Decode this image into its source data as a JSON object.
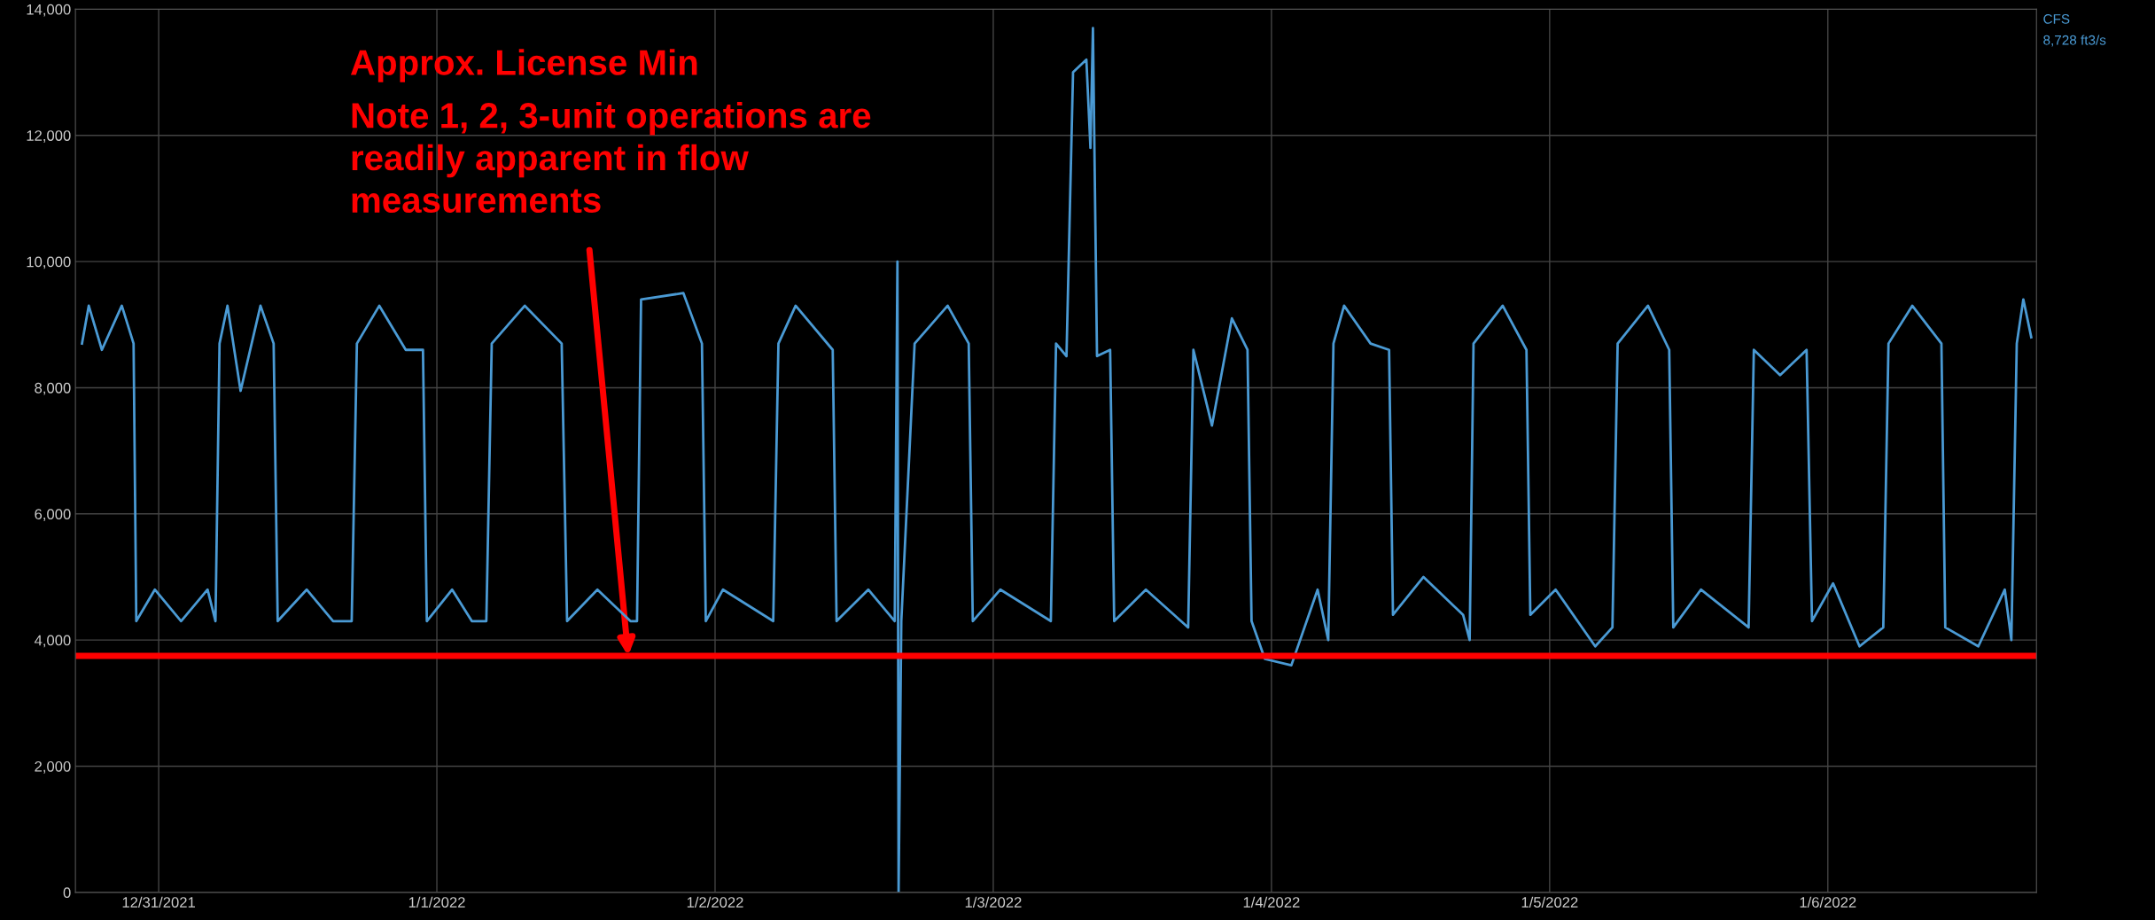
{
  "chart_data": {
    "type": "line",
    "series": [
      {
        "name": "CFS",
        "color": "#4a9ad4",
        "x": [
          "2021-12-30T17:23",
          "2021-12-30T17:58",
          "2021-12-30T19:06",
          "2021-12-30T20:49",
          "2021-12-30T21:50",
          "2021-12-30T22:04",
          "2021-12-30T23:40",
          "2021-12-31T01:56",
          "2021-12-31T04:13",
          "2021-12-31T04:54",
          "2021-12-31T05:15",
          "2021-12-31T05:56",
          "2021-12-31T07:04",
          "2021-12-31T08:47",
          "2021-12-31T09:55",
          "2021-12-31T10:16",
          "2021-12-31T12:46",
          "2021-12-31T15:03",
          "2021-12-31T16:39",
          "2021-12-31T17:06",
          "2021-12-31T19:02",
          "2021-12-31T21:19",
          "2021-12-31T22:48",
          "2021-12-31T23:08",
          "2022-01-01T01:19",
          "2022-01-01T03:01",
          "2022-01-01T04:16",
          "2022-01-01T04:44",
          "2022-01-01T07:35",
          "2022-01-01T10:46",
          "2022-01-01T11:14",
          "2022-01-01T13:51",
          "2022-01-01T16:42",
          "2022-01-01T17:16",
          "2022-01-01T17:37",
          "2022-01-01T21:16",
          "2022-01-01T22:52",
          "2022-01-01T23:12",
          "2022-01-02T00:41",
          "2022-01-02T05:01",
          "2022-01-02T05:28",
          "2022-01-02T06:57",
          "2022-01-02T10:09",
          "2022-01-02T10:29",
          "2022-01-02T13:13",
          "2022-01-02T15:30",
          "2022-01-02T15:44",
          "2022-01-02T15:50",
          "2022-01-02T16:04",
          "2022-01-02T17:13",
          "2022-01-02T20:04",
          "2022-01-02T21:53",
          "2022-01-02T22:14",
          "2022-01-03T00:37",
          "2022-01-03T04:58",
          "2022-01-03T05:25",
          "2022-01-03T06:19",
          "2022-01-03T06:53",
          "2022-01-03T08:02",
          "2022-01-03T08:23",
          "2022-01-03T08:36",
          "2022-01-03T08:57",
          "2022-01-03T10:05",
          "2022-01-03T10:26",
          "2022-01-03T13:10",
          "2022-01-03T16:49",
          "2022-01-03T17:16",
          "2022-01-03T18:52",
          "2022-01-03T20:35",
          "2022-01-03T21:56",
          "2022-01-03T22:17",
          "2022-01-03T23:26",
          "2022-01-04T01:43",
          "2022-01-04T03:59",
          "2022-01-04T04:54",
          "2022-01-04T05:21",
          "2022-01-04T06:16",
          "2022-01-04T08:33",
          "2022-01-04T10:09",
          "2022-01-04T10:29",
          "2022-01-04T13:07",
          "2022-01-04T16:32",
          "2022-01-04T17:06",
          "2022-01-04T17:26",
          "2022-01-04T19:57",
          "2022-01-04T22:00",
          "2022-01-04T22:20",
          "2022-01-05T00:31",
          "2022-01-05T03:56",
          "2022-01-05T05:25",
          "2022-01-05T05:52",
          "2022-01-05T08:29",
          "2022-01-05T10:19",
          "2022-01-05T10:40",
          "2022-01-05T13:03",
          "2022-01-05T17:10",
          "2022-01-05T17:37",
          "2022-01-05T19:53",
          "2022-01-05T22:10",
          "2022-01-05T22:38",
          "2022-01-06T00:27",
          "2022-01-06T02:44",
          "2022-01-06T04:47",
          "2022-01-06T05:14",
          "2022-01-06T07:17",
          "2022-01-06T09:48",
          "2022-01-06T10:08",
          "2022-01-06T12:59",
          "2022-01-06T15:16",
          "2022-01-06T15:50",
          "2022-01-06T16:18",
          "2022-01-06T16:52",
          "2022-01-06T17:33"
        ],
        "values": [
          8700,
          9300,
          8600,
          9300,
          8700,
          4300,
          4800,
          4300,
          4800,
          4300,
          8700,
          9300,
          7950,
          9300,
          8700,
          4300,
          4800,
          4300,
          4300,
          8700,
          9300,
          8600,
          8600,
          4300,
          4800,
          4300,
          4300,
          8700,
          9300,
          8700,
          4300,
          4800,
          4300,
          4300,
          9400,
          9500,
          8700,
          4300,
          4800,
          4300,
          8700,
          9300,
          8600,
          4300,
          4800,
          4300,
          10000,
          0,
          4300,
          8700,
          9300,
          8700,
          4300,
          4800,
          4300,
          8700,
          8500,
          13000,
          13200,
          11800,
          13700,
          8500,
          8600,
          4300,
          4800,
          4200,
          8600,
          7400,
          9100,
          8600,
          4300,
          3700,
          3600,
          4800,
          4000,
          8700,
          9300,
          8700,
          8600,
          4400,
          5000,
          4400,
          4000,
          8700,
          9300,
          8600,
          4400,
          4800,
          3900,
          4200,
          8700,
          9300,
          8600,
          4200,
          4800,
          4200,
          8600,
          8200,
          8600,
          4300,
          4900,
          3900,
          4200,
          8700,
          9300,
          8700,
          4200,
          3900,
          4800,
          4000,
          8700,
          9400,
          8800
        ]
      }
    ],
    "xlim": [
      "2021-12-30T16:49",
      "2022-01-06T18:00"
    ],
    "xticks": [
      {
        "value": "2021-12-31",
        "label": "12/31/2021"
      },
      {
        "value": "2022-01-01",
        "label": "1/1/2022"
      },
      {
        "value": "2022-01-02",
        "label": "1/2/2022"
      },
      {
        "value": "2022-01-03",
        "label": "1/3/2022"
      },
      {
        "value": "2022-01-04",
        "label": "1/4/2022"
      },
      {
        "value": "2022-01-05",
        "label": "1/5/2022"
      },
      {
        "value": "2022-01-06",
        "label": "1/6/2022"
      }
    ],
    "ylim": [
      0,
      14000
    ],
    "yticks": [
      0,
      {
        "value": 2000,
        "label": "2,000"
      },
      {
        "value": 4000,
        "label": "4,000"
      },
      {
        "value": 6000,
        "label": "6,000"
      },
      {
        "value": 8000,
        "label": "8,000"
      },
      {
        "value": 10000,
        "label": "10,000"
      },
      {
        "value": 12000,
        "label": "12,000"
      },
      {
        "value": 14000,
        "label": "14,000"
      }
    ],
    "grid": true,
    "legend": "top right",
    "ref_lines": [
      {
        "axis": "y",
        "value": 3750,
        "label": "Approx. License Min",
        "color": "#ff0000"
      }
    ],
    "annotations": [
      "Note 1, 2, 3-unit operations are\nreadily apparent in flow\nmeasurements",
      "8,728 ft3/s"
    ]
  }
}
